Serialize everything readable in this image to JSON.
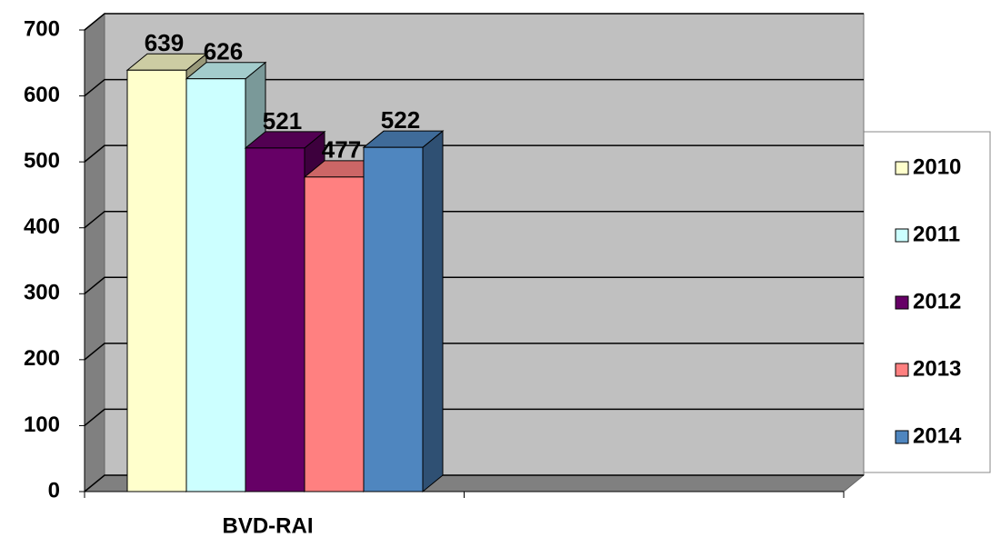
{
  "chart_data": {
    "type": "bar3d",
    "categories": [
      "BVD-RAI"
    ],
    "series": [
      {
        "name": "2010",
        "color": "#ffffcc",
        "values": [
          639
        ]
      },
      {
        "name": "2011",
        "color": "#ccffff",
        "values": [
          626
        ]
      },
      {
        "name": "2012",
        "color": "#660066",
        "values": [
          521
        ]
      },
      {
        "name": "2013",
        "color": "#ff8080",
        "values": [
          477
        ]
      },
      {
        "name": "2014",
        "color": "#4f86bf",
        "values": [
          522
        ]
      }
    ],
    "ylim": [
      0,
      700
    ],
    "yticks": [
      0,
      100,
      200,
      300,
      400,
      500,
      600,
      700
    ],
    "grid": true,
    "legend": "right",
    "data_labels": true
  }
}
